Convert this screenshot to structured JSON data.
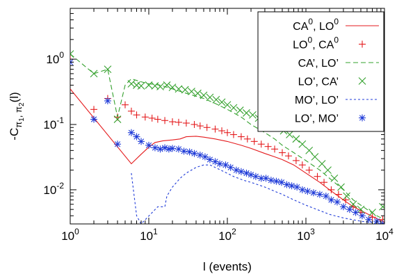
{
  "chart_data": {
    "type": "scatter",
    "xscale": "log",
    "yscale": "log",
    "xlim": [
      1,
      10000
    ],
    "ylim": [
      0.003,
      6
    ],
    "xlabel": "l (events)",
    "ylabel": {
      "base": "-C",
      "sub1": "π",
      "sub1b": "1",
      "sep": ", ",
      "sub2": "π",
      "sub2b": "2",
      "tail": "(l)"
    },
    "x_ticks": [
      {
        "value": 1,
        "base": "10",
        "exp": "0"
      },
      {
        "value": 10,
        "base": "10",
        "exp": "1"
      },
      {
        "value": 100,
        "base": "10",
        "exp": "2"
      },
      {
        "value": 1000,
        "base": "10",
        "exp": "3"
      },
      {
        "value": 10000,
        "base": "10",
        "exp": "4"
      }
    ],
    "y_ticks": [
      {
        "value": 0.01,
        "base": "10",
        "exp": "-2"
      },
      {
        "value": 0.1,
        "base": "10",
        "exp": "-1"
      },
      {
        "value": 1,
        "base": "10",
        "exp": "0"
      }
    ],
    "legend_position": "top-right",
    "series": [
      {
        "name": {
          "a": "CA",
          "a_sup": "0",
          "sep": ", ",
          "b": "LO",
          "b_sup": "0"
        },
        "style": "solid-line",
        "color": "#e41a1c",
        "points": [
          [
            1,
            0.35
          ],
          [
            6,
            0.025
          ],
          [
            8,
            0.035
          ],
          [
            10,
            0.045
          ],
          [
            12,
            0.053
          ],
          [
            15,
            0.056
          ],
          [
            20,
            0.058
          ],
          [
            25,
            0.06
          ],
          [
            30,
            0.065
          ],
          [
            40,
            0.066
          ],
          [
            50,
            0.064
          ],
          [
            70,
            0.06
          ],
          [
            100,
            0.055
          ],
          [
            150,
            0.048
          ],
          [
            200,
            0.043
          ],
          [
            300,
            0.036
          ],
          [
            400,
            0.032
          ],
          [
            500,
            0.029
          ],
          [
            700,
            0.024
          ],
          [
            1000,
            0.018
          ],
          [
            1500,
            0.013
          ],
          [
            2000,
            0.01
          ],
          [
            3000,
            0.007
          ],
          [
            4000,
            0.0055
          ],
          [
            6000,
            0.0043
          ],
          [
            8000,
            0.0036
          ],
          [
            10000,
            0.0032
          ]
        ]
      },
      {
        "name": {
          "a": "LO",
          "a_sup": "0",
          "sep": ", ",
          "b": "CA",
          "b_sup": "0"
        },
        "style": "plus",
        "color": "#e41a1c",
        "points": [
          [
            1,
            1.0
          ],
          [
            2,
            0.17
          ],
          [
            3,
            0.25
          ],
          [
            4,
            0.13
          ],
          [
            5,
            0.2
          ],
          [
            6,
            0.16
          ],
          [
            7,
            0.14
          ],
          [
            9,
            0.13
          ],
          [
            11,
            0.125
          ],
          [
            13,
            0.12
          ],
          [
            16,
            0.115
          ],
          [
            20,
            0.11
          ],
          [
            24,
            0.108
          ],
          [
            30,
            0.105
          ],
          [
            38,
            0.1
          ],
          [
            45,
            0.095
          ],
          [
            55,
            0.09
          ],
          [
            70,
            0.085
          ],
          [
            85,
            0.08
          ],
          [
            100,
            0.075
          ],
          [
            120,
            0.07
          ],
          [
            150,
            0.065
          ],
          [
            180,
            0.06
          ],
          [
            220,
            0.055
          ],
          [
            270,
            0.05
          ],
          [
            330,
            0.046
          ],
          [
            400,
            0.042
          ],
          [
            500,
            0.037
          ],
          [
            600,
            0.033
          ],
          [
            750,
            0.028
          ],
          [
            900,
            0.024
          ],
          [
            1100,
            0.02
          ],
          [
            1400,
            0.016
          ],
          [
            1700,
            0.013
          ],
          [
            2100,
            0.01
          ],
          [
            2600,
            0.0085
          ],
          [
            3200,
            0.007
          ],
          [
            4000,
            0.0055
          ],
          [
            5000,
            0.0045
          ],
          [
            7000,
            0.0038
          ],
          [
            9500,
            0.0035
          ]
        ]
      },
      {
        "name": {
          "a": "CA’",
          "a_sup": "",
          "sep": ", ",
          "b": "LO’",
          "b_sup": ""
        },
        "style": "dashed-line",
        "color": "#33a02c",
        "points": [
          [
            1,
            1.2
          ],
          [
            2,
            0.6
          ],
          [
            3,
            0.7
          ],
          [
            4,
            0.13
          ],
          [
            5,
            0.4
          ],
          [
            6,
            0.5
          ],
          [
            8,
            0.45
          ],
          [
            10,
            0.42
          ],
          [
            14,
            0.4
          ],
          [
            20,
            0.35
          ],
          [
            30,
            0.3
          ],
          [
            50,
            0.25
          ],
          [
            70,
            0.21
          ],
          [
            100,
            0.17
          ],
          [
            150,
            0.13
          ],
          [
            200,
            0.1
          ],
          [
            300,
            0.075
          ],
          [
            400,
            0.06
          ],
          [
            500,
            0.048
          ],
          [
            700,
            0.037
          ],
          [
            1000,
            0.028
          ],
          [
            1500,
            0.02
          ],
          [
            2000,
            0.015
          ],
          [
            3000,
            0.01
          ],
          [
            4000,
            0.007
          ],
          [
            6000,
            0.005
          ],
          [
            8000,
            0.004
          ],
          [
            10000,
            0.0035
          ]
        ]
      },
      {
        "name": {
          "a": "LO’",
          "a_sup": "",
          "sep": ", ",
          "b": "CA’",
          "b_sup": ""
        },
        "style": "cross",
        "color": "#33a02c",
        "points": [
          [
            1,
            1.2
          ],
          [
            2,
            0.6
          ],
          [
            3,
            0.7
          ],
          [
            4,
            0.12
          ],
          [
            6,
            0.42
          ],
          [
            7,
            0.4
          ],
          [
            8,
            0.39
          ],
          [
            10,
            0.4
          ],
          [
            12,
            0.39
          ],
          [
            14,
            0.38
          ],
          [
            17,
            0.4
          ],
          [
            20,
            0.37
          ],
          [
            24,
            0.35
          ],
          [
            29,
            0.34
          ],
          [
            35,
            0.32
          ],
          [
            42,
            0.3
          ],
          [
            50,
            0.28
          ],
          [
            60,
            0.26
          ],
          [
            72,
            0.24
          ],
          [
            85,
            0.22
          ],
          [
            100,
            0.2
          ],
          [
            120,
            0.18
          ],
          [
            145,
            0.165
          ],
          [
            175,
            0.15
          ],
          [
            210,
            0.14
          ],
          [
            250,
            0.125
          ],
          [
            300,
            0.11
          ],
          [
            360,
            0.1
          ],
          [
            430,
            0.09
          ],
          [
            520,
            0.08
          ],
          [
            620,
            0.07
          ],
          [
            750,
            0.06
          ],
          [
            900,
            0.05
          ],
          [
            1100,
            0.04
          ],
          [
            1300,
            0.032
          ],
          [
            1600,
            0.025
          ],
          [
            1900,
            0.02
          ],
          [
            2300,
            0.015
          ],
          [
            2800,
            0.011
          ],
          [
            3300,
            0.008
          ],
          [
            4000,
            0.006
          ],
          [
            5000,
            0.005
          ],
          [
            7000,
            0.0045
          ],
          [
            9500,
            0.0055
          ]
        ]
      },
      {
        "name": {
          "a": "MO’",
          "a_sup": "",
          "sep": ", ",
          "b": "LO’",
          "b_sup": ""
        },
        "style": "dotted-line",
        "color": "#1f3bd8",
        "points": [
          [
            6,
            0.018
          ],
          [
            7,
            0.004
          ],
          [
            8,
            0.003
          ],
          [
            13,
            0.0055
          ],
          [
            16,
            0.0055
          ],
          [
            17,
            0.008
          ],
          [
            20,
            0.011
          ],
          [
            25,
            0.015
          ],
          [
            30,
            0.018
          ],
          [
            40,
            0.022
          ],
          [
            50,
            0.024
          ],
          [
            60,
            0.024
          ],
          [
            70,
            0.022
          ],
          [
            90,
            0.019
          ],
          [
            120,
            0.016
          ],
          [
            160,
            0.014
          ],
          [
            200,
            0.013
          ],
          [
            300,
            0.011
          ],
          [
            400,
            0.0095
          ],
          [
            500,
            0.0085
          ],
          [
            700,
            0.007
          ],
          [
            1000,
            0.0058
          ],
          [
            1500,
            0.0048
          ],
          [
            2000,
            0.0042
          ],
          [
            3000,
            0.0037
          ],
          [
            5000,
            0.0033
          ],
          [
            8000,
            0.0031
          ],
          [
            10000,
            0.003
          ]
        ]
      },
      {
        "name": {
          "a": "LO’",
          "a_sup": "",
          "sep": ", ",
          "b": "MO’",
          "b_sup": ""
        },
        "style": "star",
        "color": "#1f3bd8",
        "points": [
          [
            1,
            0.9
          ],
          [
            2,
            0.12
          ],
          [
            3,
            0.23
          ],
          [
            4,
            0.05
          ],
          [
            6,
            0.075
          ],
          [
            7,
            0.065
          ],
          [
            8,
            0.055
          ],
          [
            10,
            0.048
          ],
          [
            12,
            0.044
          ],
          [
            14,
            0.042
          ],
          [
            16,
            0.044
          ],
          [
            18,
            0.042
          ],
          [
            20,
            0.043
          ],
          [
            24,
            0.042
          ],
          [
            28,
            0.039
          ],
          [
            33,
            0.038
          ],
          [
            38,
            0.036
          ],
          [
            45,
            0.034
          ],
          [
            52,
            0.032
          ],
          [
            60,
            0.029
          ],
          [
            70,
            0.027
          ],
          [
            80,
            0.025
          ],
          [
            95,
            0.024
          ],
          [
            110,
            0.022
          ],
          [
            130,
            0.02
          ],
          [
            150,
            0.019
          ],
          [
            175,
            0.018
          ],
          [
            200,
            0.017
          ],
          [
            230,
            0.016
          ],
          [
            270,
            0.015
          ],
          [
            310,
            0.015
          ],
          [
            360,
            0.014
          ],
          [
            420,
            0.0135
          ],
          [
            490,
            0.013
          ],
          [
            570,
            0.012
          ],
          [
            660,
            0.0115
          ],
          [
            770,
            0.011
          ],
          [
            900,
            0.01
          ],
          [
            1050,
            0.0095
          ],
          [
            1250,
            0.009
          ],
          [
            1500,
            0.0085
          ],
          [
            1800,
            0.008
          ],
          [
            2100,
            0.007
          ],
          [
            2500,
            0.0065
          ],
          [
            3000,
            0.0055
          ],
          [
            3600,
            0.005
          ],
          [
            4300,
            0.0045
          ],
          [
            5200,
            0.004
          ],
          [
            6300,
            0.0035
          ],
          [
            8000,
            0.0033
          ],
          [
            9500,
            0.003
          ]
        ]
      }
    ]
  }
}
